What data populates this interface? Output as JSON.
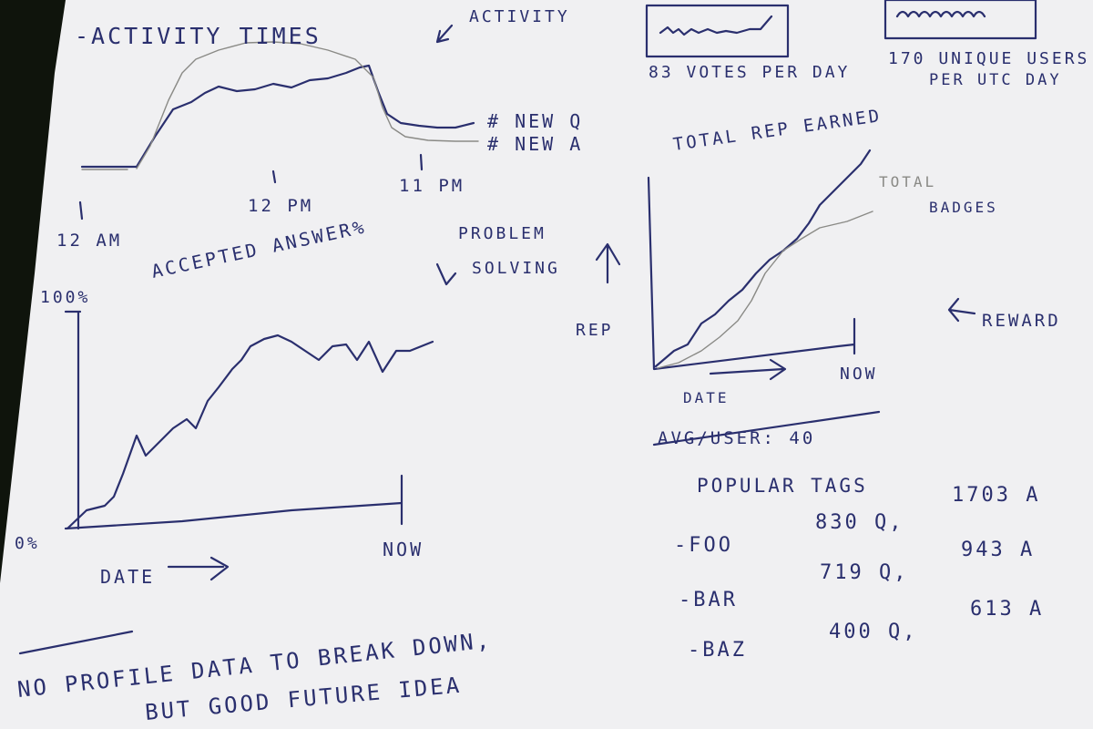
{
  "activity_panel": {
    "title": "-ACTIVITY TIMES",
    "note": "ACTIVITY",
    "legend_q": "# NEW Q",
    "legend_a": "# NEW A",
    "tick_12am": "12 AM",
    "tick_12pm": "12 PM",
    "tick_11pm": "11 PM"
  },
  "stats": {
    "votes": "83 VOTES PER DAY",
    "users_line1": "170 UNIQUE USERS",
    "users_line2": "PER UTC   DAY"
  },
  "accepted_panel": {
    "title": "ACCEPTED ANSWER%",
    "y_top": "100%",
    "y_bottom": "0%",
    "x_label": "DATE",
    "x_end": "NOW"
  },
  "problem_solving": {
    "line1": "PROBLEM",
    "line2": "SOLVING"
  },
  "rep_panel": {
    "title": "TOTAL REP EARNED",
    "badges_line1": "TOTAL",
    "badges_line2": "BADGES",
    "y_label": "REP",
    "x_label": "DATE",
    "x_end": "NOW",
    "reward": "REWARD"
  },
  "struck_text": "AVG/USER: 40",
  "tags": {
    "title": "POPULAR TAGS",
    "rows": [
      {
        "name": "-FOO",
        "q": "830 Q,",
        "a": "1703 A"
      },
      {
        "name": "-BAR",
        "q": "719 Q,",
        "a": "943 A"
      },
      {
        "name": "-BAZ",
        "q": "400 Q,",
        "a": "613 A"
      }
    ]
  },
  "footer": {
    "line1": "NO PROFILE DATA TO BREAK DOWN,",
    "line2": "BUT GOOD FUTURE IDEA"
  },
  "colors": {
    "ink": "#2a2f6e",
    "pencil": "#8a8a86",
    "paper": "#f1f1f3",
    "background": "#0f140c"
  }
}
